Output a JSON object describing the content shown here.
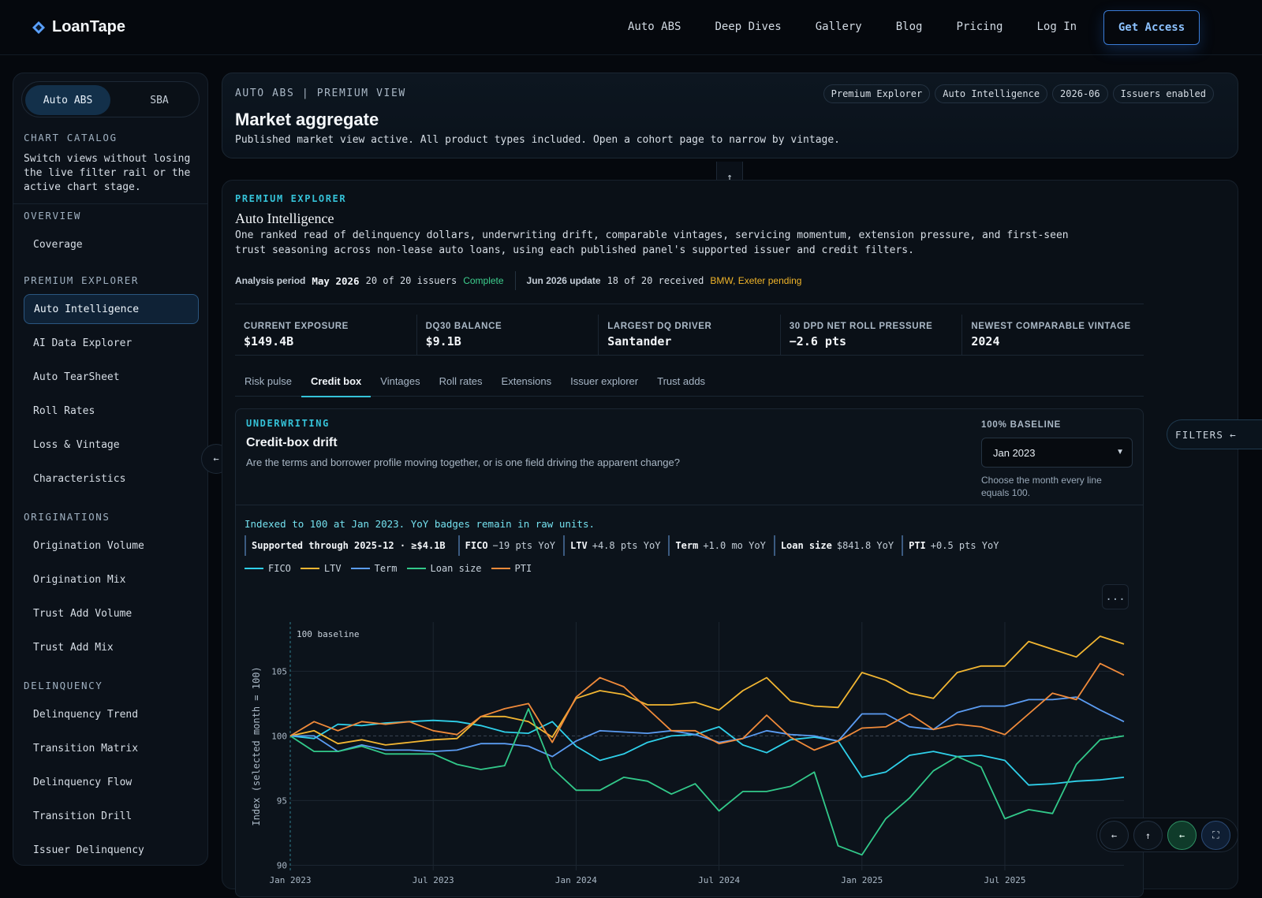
{
  "nav": {
    "brand": "LoanTape",
    "links": [
      "Auto ABS",
      "Deep Dives",
      "Gallery",
      "Blog",
      "Pricing",
      "Log In"
    ],
    "cta": "Get Access"
  },
  "sidebar": {
    "segments": [
      "Auto ABS",
      "SBA"
    ],
    "catalog_title": "CHART CATALOG",
    "catalog_desc": "Switch views without losing the live filter rail or the active chart stage.",
    "sections": [
      {
        "title": "OVERVIEW",
        "items": [
          "Coverage"
        ]
      },
      {
        "title": "PREMIUM EXPLORER",
        "items": [
          "Auto Intelligence",
          "AI Data Explorer",
          "Auto TearSheet",
          "Roll Rates",
          "Loss & Vintage",
          "Characteristics"
        ]
      },
      {
        "title": "ORIGINATIONS",
        "items": [
          "Origination Volume",
          "Origination Mix",
          "Trust Add Volume",
          "Trust Add Mix"
        ]
      },
      {
        "title": "DELINQUENCY",
        "items": [
          "Delinquency Trend",
          "Transition Matrix",
          "Delinquency Flow",
          "Transition Drill",
          "Issuer Delinquency"
        ]
      }
    ],
    "active_item": "Auto Intelligence"
  },
  "header": {
    "eyebrow": "AUTO ABS | PREMIUM VIEW",
    "title": "Market aggregate",
    "subtitle": "Published market view active. All product types included. Open a cohort page to narrow by vintage.",
    "chips": [
      "Premium Explorer",
      "Auto Intelligence",
      "2026-06",
      "Issuers enabled"
    ]
  },
  "main": {
    "eyebrow": "PREMIUM EXPLORER",
    "title": "Auto Intelligence",
    "description": "One ranked read of delinquency dollars, underwriting drift, comparable vintages, servicing momentum, extension pressure, and first-seen trust seasoning across non-lease auto loans, using each published panel's supported issuer and credit filters.",
    "status": {
      "period_label": "Analysis period",
      "period_value": "May 2026",
      "period_issuers": "20 of 20 issuers",
      "period_state": "Complete",
      "update_label": "Jun 2026 update",
      "update_received": "18 of 20 received",
      "update_pending": "BMW, Exeter pending"
    },
    "kpis": [
      {
        "label": "CURRENT EXPOSURE",
        "value": "$149.4B"
      },
      {
        "label": "DQ30 BALANCE",
        "value": "$9.1B"
      },
      {
        "label": "LARGEST DQ DRIVER",
        "value": "Santander"
      },
      {
        "label": "30 DPD NET ROLL PRESSURE",
        "value": "−2.6 pts"
      },
      {
        "label": "NEWEST COMPARABLE VINTAGE",
        "value": "2024"
      }
    ],
    "tabs": [
      "Risk pulse",
      "Credit box",
      "Vintages",
      "Roll rates",
      "Extensions",
      "Issuer explorer",
      "Trust adds"
    ],
    "active_tab": "Credit box"
  },
  "panel": {
    "eyebrow": "UNDERWRITING",
    "title": "Credit-box drift",
    "question": "Are the terms and borrower profile moving together, or is one field driving the apparent change?",
    "baseline_label": "100% BASELINE",
    "baseline_value": "Jan 2023",
    "baseline_help": "Choose the month every line equals 100.",
    "note": "Indexed to 100 at Jan 2023. YoY badges remain in raw units.",
    "badges": [
      {
        "name": "Supported through 2025-12 · ≥$4.1B",
        "value": ""
      },
      {
        "name": "FICO",
        "value": "−19 pts YoY"
      },
      {
        "name": "LTV",
        "value": "+4.8 pts YoY"
      },
      {
        "name": "Term",
        "value": "+1.0 mo YoY"
      },
      {
        "name": "Loan size",
        "value": "$841.8 YoY"
      },
      {
        "name": "PTI",
        "value": "+0.5 pts YoY"
      }
    ],
    "more_label": "...",
    "filters_label": "FILTERS"
  },
  "chart_data": {
    "type": "line",
    "title": "",
    "xlabel": "",
    "ylabel": "Index (selected month = 100)",
    "annotation": "100 baseline",
    "x_ticks": [
      "Jan 2023",
      "Jul 2023",
      "Jan 2024",
      "Jul 2024",
      "Jan 2025",
      "Jul 2025"
    ],
    "y_ticks": [
      90,
      95,
      100,
      105
    ],
    "ylim": [
      89.6,
      108.8
    ],
    "x_range": [
      "2023-01",
      "2025-12"
    ],
    "grid": true,
    "legend": "top-left",
    "months": 36,
    "series": [
      {
        "name": "FICO",
        "color": "#2fd0ea",
        "values": [
          100,
          99.8,
          100.9,
          100.8,
          101.0,
          101.1,
          101.2,
          101.1,
          100.8,
          100.3,
          100.2,
          101.1,
          99.2,
          98.1,
          98.6,
          99.5,
          100.0,
          100.1,
          100.7,
          99.3,
          98.7,
          99.7,
          99.9,
          99.6,
          96.8,
          97.2,
          98.5,
          98.8,
          98.4,
          98.5,
          98.1,
          96.2,
          96.3,
          96.5,
          96.6,
          96.8
        ]
      },
      {
        "name": "LTV",
        "color": "#f2b632",
        "values": [
          100,
          100.4,
          99.4,
          99.7,
          99.3,
          99.5,
          99.7,
          99.8,
          101.5,
          101.5,
          101.1,
          99.9,
          102.9,
          103.5,
          103.2,
          102.4,
          102.4,
          102.6,
          102.0,
          103.5,
          104.5,
          102.7,
          102.3,
          102.2,
          104.9,
          104.3,
          103.3,
          102.9,
          104.9,
          105.4,
          105.4,
          107.3,
          106.7,
          106.1,
          107.7,
          107.1
        ]
      },
      {
        "name": "Term",
        "color": "#5b9cf2",
        "values": [
          100,
          100.0,
          98.8,
          99.3,
          98.9,
          98.9,
          98.8,
          98.9,
          99.4,
          99.4,
          99.2,
          98.4,
          99.6,
          100.4,
          100.3,
          100.2,
          100.4,
          100.1,
          99.5,
          99.8,
          100.4,
          100.1,
          100.0,
          99.6,
          101.7,
          101.7,
          100.7,
          100.5,
          101.8,
          102.3,
          102.3,
          102.8,
          102.8,
          103.0,
          102.0,
          101.1
        ]
      },
      {
        "name": "Loan size",
        "color": "#32c98a",
        "values": [
          100,
          98.8,
          98.8,
          99.2,
          98.6,
          98.6,
          98.6,
          97.8,
          97.4,
          97.7,
          102.1,
          97.5,
          95.8,
          95.8,
          96.8,
          96.5,
          95.5,
          96.3,
          94.2,
          95.7,
          95.7,
          96.1,
          97.2,
          91.5,
          90.8,
          93.6,
          95.2,
          97.3,
          98.4,
          97.6,
          93.6,
          94.3,
          94.0,
          97.8,
          99.7,
          100
        ]
      },
      {
        "name": "PTI",
        "color": "#f08a3a",
        "values": [
          100,
          101.1,
          100.4,
          101.1,
          100.9,
          101.1,
          100.4,
          100.1,
          101.5,
          102.1,
          102.5,
          99.5,
          103.0,
          104.5,
          103.8,
          102.1,
          100.4,
          100.4,
          99.4,
          99.8,
          101.6,
          99.9,
          98.9,
          99.6,
          100.6,
          100.7,
          101.7,
          100.5,
          100.9,
          100.7,
          100.1,
          101.7,
          103.3,
          102.8,
          105.6,
          104.7
        ]
      }
    ]
  },
  "fab": [
    "left-arrow",
    "up-arrow",
    "back-arrow",
    "fullscreen"
  ]
}
